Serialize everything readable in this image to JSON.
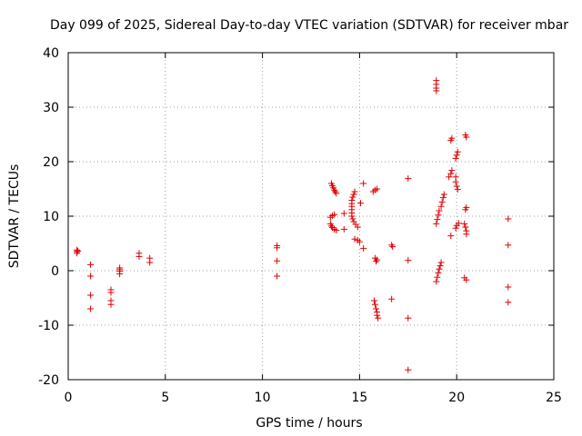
{
  "chart_data": {
    "type": "scatter",
    "title": "Day 099 of 2025, Sidereal Day-to-day VTEC variation (SDTVAR) for receiver mbar",
    "xlabel": "GPS time / hours",
    "ylabel": "SDTVAR / TECUs",
    "xlim": [
      0,
      25
    ],
    "ylim": [
      -20,
      40
    ],
    "xticks": [
      0,
      5,
      10,
      15,
      20,
      25
    ],
    "yticks": [
      -20,
      -10,
      0,
      10,
      20,
      30,
      40
    ],
    "xtick_labels": [
      "0",
      "5",
      "10",
      "15",
      "20",
      "25"
    ],
    "ytick_labels": [
      "-20",
      "-10",
      "0",
      "10",
      "20",
      "30",
      "40"
    ],
    "grid": true,
    "marker": "+",
    "color": "#e00000",
    "series": [
      {
        "name": "SDTVAR",
        "points": [
          [
            0.45,
            3.8
          ],
          [
            0.45,
            3.5
          ],
          [
            0.45,
            3.2
          ],
          [
            0.5,
            3.6
          ],
          [
            1.15,
            1.1
          ],
          [
            1.15,
            -1.0
          ],
          [
            1.15,
            -4.5
          ],
          [
            1.15,
            -7.0
          ],
          [
            2.2,
            -3.5
          ],
          [
            2.2,
            -4.0
          ],
          [
            2.2,
            -5.5
          ],
          [
            2.2,
            -6.2
          ],
          [
            2.65,
            0.5
          ],
          [
            2.65,
            0.2
          ],
          [
            2.65,
            -0.1
          ],
          [
            2.65,
            -0.6
          ],
          [
            3.65,
            3.2
          ],
          [
            3.65,
            2.6
          ],
          [
            4.2,
            2.3
          ],
          [
            4.2,
            1.5
          ],
          [
            10.75,
            4.6
          ],
          [
            10.75,
            4.2
          ],
          [
            10.75,
            1.8
          ],
          [
            10.75,
            -1.0
          ],
          [
            13.55,
            16.0
          ],
          [
            13.6,
            15.6
          ],
          [
            13.65,
            15.2
          ],
          [
            13.7,
            14.8
          ],
          [
            13.75,
            14.5
          ],
          [
            13.8,
            14.2
          ],
          [
            13.5,
            9.8
          ],
          [
            13.6,
            10.1
          ],
          [
            13.7,
            10.3
          ],
          [
            13.5,
            8.6
          ],
          [
            13.55,
            8.2
          ],
          [
            13.6,
            7.9
          ],
          [
            13.7,
            7.6
          ],
          [
            13.8,
            7.4
          ],
          [
            14.2,
            10.5
          ],
          [
            14.2,
            7.6
          ],
          [
            14.75,
            14.5
          ],
          [
            14.7,
            14.0
          ],
          [
            14.65,
            13.5
          ],
          [
            14.6,
            12.9
          ],
          [
            14.6,
            12.3
          ],
          [
            14.6,
            11.8
          ],
          [
            14.6,
            11.2
          ],
          [
            14.6,
            10.6
          ],
          [
            14.6,
            10.0
          ],
          [
            14.65,
            9.5
          ],
          [
            14.7,
            9.0
          ],
          [
            14.8,
            8.5
          ],
          [
            14.9,
            8.0
          ],
          [
            14.75,
            5.8
          ],
          [
            14.9,
            5.6
          ],
          [
            15.0,
            5.3
          ],
          [
            15.05,
            12.4
          ],
          [
            15.2,
            16.0
          ],
          [
            15.2,
            4.1
          ],
          [
            15.7,
            14.5
          ],
          [
            15.8,
            14.8
          ],
          [
            15.9,
            15.0
          ],
          [
            15.8,
            2.3
          ],
          [
            15.9,
            2.0
          ],
          [
            15.85,
            1.7
          ],
          [
            15.75,
            -5.5
          ],
          [
            15.8,
            -6.2
          ],
          [
            15.85,
            -7.0
          ],
          [
            15.9,
            -7.6
          ],
          [
            15.9,
            -8.2
          ],
          [
            15.95,
            -8.7
          ],
          [
            16.65,
            4.7
          ],
          [
            16.7,
            4.4
          ],
          [
            16.65,
            -5.2
          ],
          [
            17.5,
            16.9
          ],
          [
            17.5,
            1.9
          ],
          [
            17.5,
            -8.7
          ],
          [
            17.5,
            -18.2
          ],
          [
            18.95,
            34.9
          ],
          [
            18.95,
            34.2
          ],
          [
            18.95,
            33.5
          ],
          [
            18.95,
            33.0
          ],
          [
            18.95,
            8.6
          ],
          [
            19.0,
            9.4
          ],
          [
            19.05,
            10.2
          ],
          [
            19.1,
            11.0
          ],
          [
            19.2,
            11.8
          ],
          [
            19.25,
            12.6
          ],
          [
            19.3,
            13.4
          ],
          [
            19.35,
            14.0
          ],
          [
            18.95,
            -2.0
          ],
          [
            19.0,
            -1.2
          ],
          [
            19.05,
            -0.4
          ],
          [
            19.1,
            0.3
          ],
          [
            19.15,
            0.9
          ],
          [
            19.2,
            1.5
          ],
          [
            19.6,
            17.2
          ],
          [
            19.7,
            17.8
          ],
          [
            19.75,
            18.4
          ],
          [
            19.75,
            24.3
          ],
          [
            19.7,
            23.9
          ],
          [
            19.7,
            6.4
          ],
          [
            19.95,
            20.6
          ],
          [
            20.0,
            21.2
          ],
          [
            20.05,
            21.8
          ],
          [
            19.95,
            17.2
          ],
          [
            19.95,
            16.3
          ],
          [
            20.0,
            15.5
          ],
          [
            20.05,
            14.9
          ],
          [
            19.95,
            7.8
          ],
          [
            20.0,
            8.3
          ],
          [
            20.1,
            8.7
          ],
          [
            20.45,
            24.9
          ],
          [
            20.5,
            24.5
          ],
          [
            20.45,
            11.2
          ],
          [
            20.5,
            11.6
          ],
          [
            20.4,
            8.6
          ],
          [
            20.45,
            8.0
          ],
          [
            20.5,
            7.3
          ],
          [
            20.5,
            6.7
          ],
          [
            20.4,
            -1.3
          ],
          [
            20.5,
            -1.7
          ],
          [
            22.65,
            9.5
          ],
          [
            22.65,
            4.7
          ],
          [
            22.65,
            -3.0
          ],
          [
            22.65,
            -5.8
          ]
        ]
      }
    ]
  }
}
